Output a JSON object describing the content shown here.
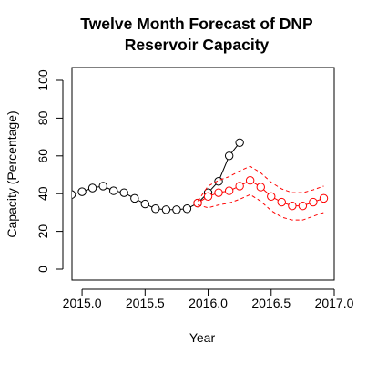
{
  "chart_data": {
    "type": "line",
    "title": [
      "Twelve Month Forecast of DNP",
      "Reservoir Capacity"
    ],
    "xlabel": "Year",
    "ylabel": "Capacity (Percentage)",
    "xlim": [
      2014.92,
      2017.0
    ],
    "ylim": [
      0,
      100
    ],
    "xticks": [
      2015.0,
      2015.5,
      2016.0,
      2016.5,
      2017.0
    ],
    "xtick_labels": [
      "2015.0",
      "2015.5",
      "2016.0",
      "2016.5",
      "2017.0"
    ],
    "yticks": [
      0,
      20,
      40,
      60,
      80,
      100
    ],
    "ytick_labels": [
      "0",
      "20",
      "40",
      "60",
      "80",
      "100"
    ],
    "grid": false,
    "legend": "none",
    "series": [
      {
        "color": "#000000",
        "style": "solid",
        "marker": "open-circle",
        "x": [
          2014.917,
          2015.0,
          2015.083,
          2015.167,
          2015.25,
          2015.333,
          2015.417,
          2015.5,
          2015.583,
          2015.667,
          2015.75,
          2015.833,
          2015.917,
          2016.0,
          2016.083,
          2016.167,
          2016.25
        ],
        "y": [
          39.5,
          41,
          43,
          44,
          41.5,
          40.5,
          37.5,
          34.5,
          32,
          31.5,
          31.5,
          32,
          35,
          40.5,
          46.5,
          60,
          67
        ]
      },
      {
        "color": "#ff0000",
        "style": "solid",
        "marker": "open-circle",
        "x": [
          2015.917,
          2016.0,
          2016.083,
          2016.167,
          2016.25,
          2016.333,
          2016.417,
          2016.5,
          2016.583,
          2016.667,
          2016.75,
          2016.833,
          2016.917
        ],
        "y": [
          35,
          38.5,
          40.5,
          41.5,
          44,
          47,
          43.5,
          38.5,
          35.5,
          33.5,
          33.5,
          35.5,
          37.5
        ]
      },
      {
        "color": "#ff0000",
        "style": "dashed",
        "marker": "none",
        "x": [
          2015.917,
          2016.0,
          2016.083,
          2016.167,
          2016.25,
          2016.333,
          2016.417,
          2016.5,
          2016.583,
          2016.667,
          2016.75,
          2016.833,
          2016.917
        ],
        "y": [
          36,
          44,
          47,
          49,
          52,
          54.5,
          51,
          46,
          42.5,
          40.5,
          40.5,
          42,
          44
        ]
      },
      {
        "color": "#ff0000",
        "style": "dashed",
        "marker": "none",
        "x": [
          2015.917,
          2016.0,
          2016.083,
          2016.167,
          2016.25,
          2016.333,
          2016.417,
          2016.5,
          2016.583,
          2016.667,
          2016.75,
          2016.833,
          2016.917
        ],
        "y": [
          34,
          32.5,
          34,
          35,
          37,
          39.5,
          36,
          31,
          27.5,
          26,
          26,
          28,
          30
        ]
      }
    ]
  }
}
